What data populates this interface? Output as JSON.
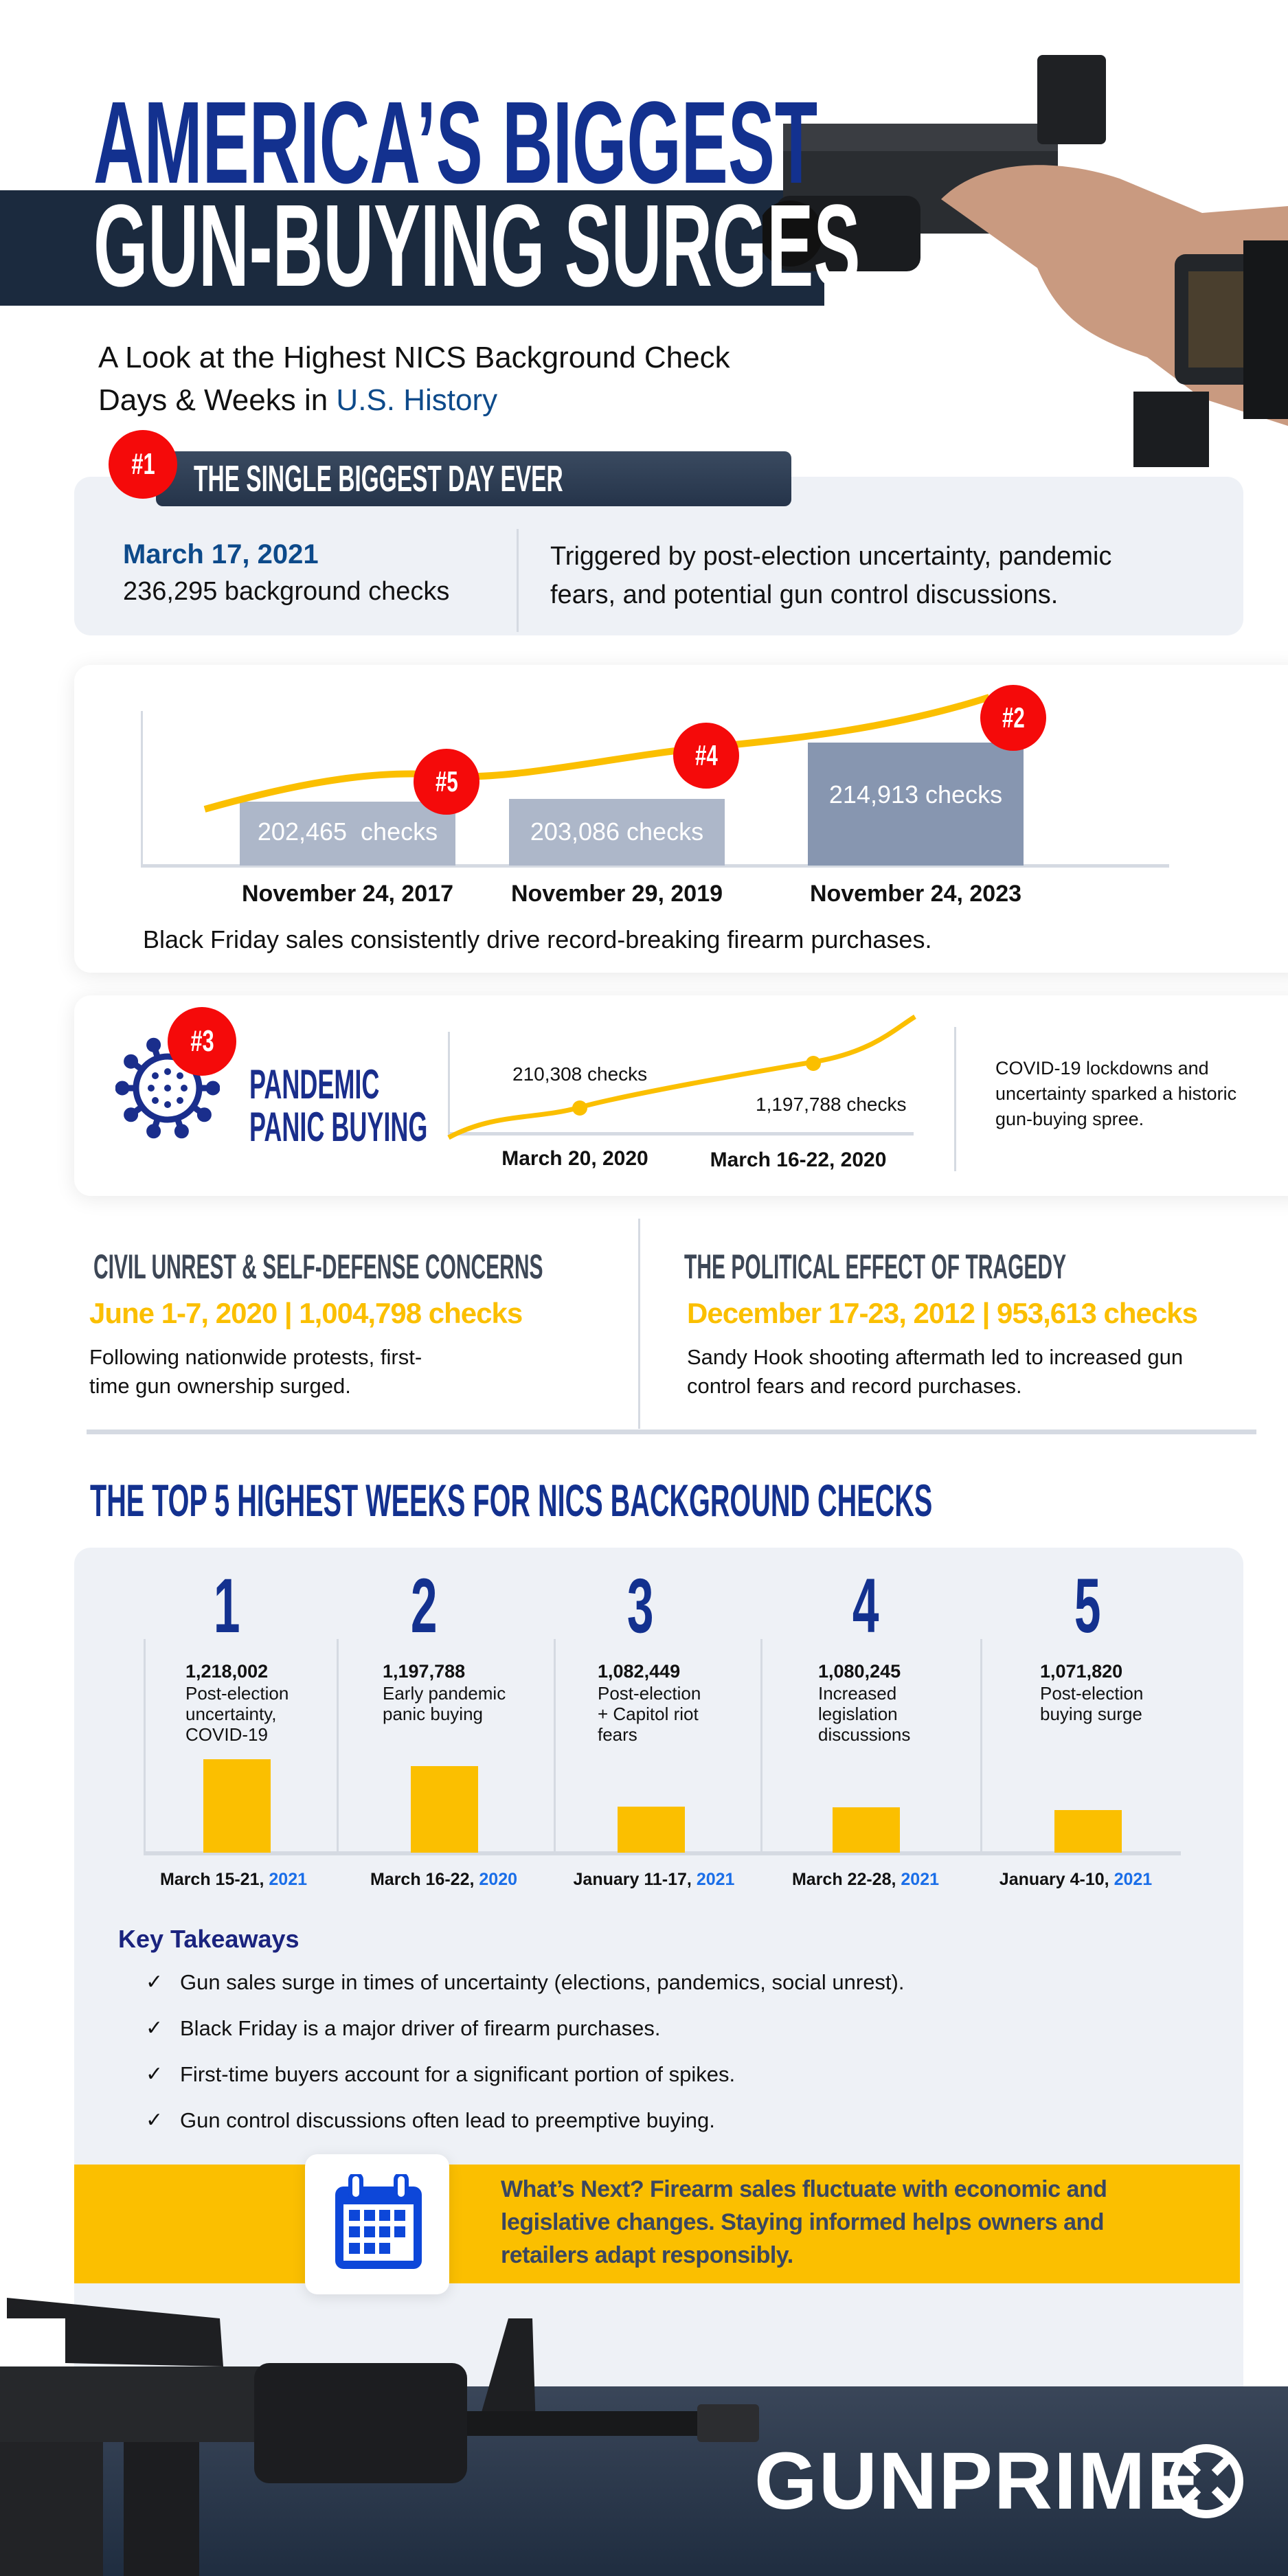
{
  "header": {
    "title_line1": "AMERICA’S BIGGEST",
    "title_line2": "GUN-BUYING SURGES",
    "subtitle_line1": "A Look at the Highest NICS Background Check",
    "subtitle_line2_prefix": "Days & Weeks in ",
    "subtitle_line2_highlight": "U.S. History"
  },
  "biggest_day": {
    "badge": "#1",
    "heading": "THE SINGLE BIGGEST DAY EVER",
    "date": "March 17, 2021",
    "checks": "236,295 background checks",
    "description_line1": "Triggered by post-election uncertainty, pandemic",
    "description_line2": "fears, and potential gun control discussions."
  },
  "black_friday": {
    "bars": [
      {
        "label": "202,465  checks",
        "date": "November 24, 2017",
        "badge": "#5",
        "value": 202465
      },
      {
        "label": "203,086 checks",
        "date": "November 29, 2019",
        "badge": "#4",
        "value": 203086
      },
      {
        "label": "214,913 checks",
        "date": "November 24, 2023",
        "badge": "#2",
        "value": 214913
      }
    ],
    "caption": "Black Friday sales consistently drive record-breaking firearm purchases."
  },
  "pandemic": {
    "badge": "#3",
    "title_line1": "PANDEMIC",
    "title_line2": "PANIC BUYING",
    "point1_label": "210,308 checks",
    "point2_label": "1,197,788 checks",
    "date1": "March 20, 2020",
    "date2": "March 16-22, 2020",
    "description_line1": "COVID-19 lockdowns and",
    "description_line2": "uncertainty sparked a historic",
    "description_line3": "gun-buying spree."
  },
  "civil_unrest": {
    "heading": "CIVIL UNREST & SELF-DEFENSE CONCERNS",
    "stat": "June 1-7, 2020 | 1,004,798 checks",
    "body_line1": "Following nationwide protests, first-",
    "body_line2": "time gun ownership surged."
  },
  "tragedy": {
    "heading": "THE POLITICAL EFFECT OF TRAGEDY",
    "stat": "December 17-23, 2012 | 953,613 checks",
    "body_line1": "Sandy Hook shooting aftermath led to increased gun",
    "body_line2": "control fears and record purchases."
  },
  "top5": {
    "heading": "THE TOP 5 HIGHEST WEEKS FOR NICS BACKGROUND CHECKS",
    "weeks": [
      {
        "rank": "1",
        "value_label": "1,218,002",
        "value": 1218002,
        "desc": [
          "Post-election",
          "uncertainty,",
          "COVID-19"
        ],
        "date": "March 15-21, ",
        "year": "2021"
      },
      {
        "rank": "2",
        "value_label": "1,197,788",
        "value": 1197788,
        "desc": [
          "Early pandemic",
          "panic buying"
        ],
        "date": "March 16-22, ",
        "year": "2020"
      },
      {
        "rank": "3",
        "value_label": "1,082,449",
        "value": 1082449,
        "desc": [
          "Post-election",
          "+ Capitol riot",
          "fears"
        ],
        "date": "January 11-17, ",
        "year": "2021"
      },
      {
        "rank": "4",
        "value_label": "1,080,245",
        "value": 1080245,
        "desc": [
          "Increased",
          "legislation",
          "discussions"
        ],
        "date": "March 22-28, ",
        "year": "2021"
      },
      {
        "rank": "5",
        "value_label": "1,071,820",
        "value": 1071820,
        "desc": [
          "Post-election",
          "buying surge"
        ],
        "date": "January 4-10, ",
        "year": "2021"
      }
    ]
  },
  "takeaways": {
    "heading": "Key Takeaways",
    "check_icon": "✓",
    "items": [
      "Gun sales surge in times of uncertainty (elections, pandemics, social unrest).",
      "Black Friday is a major driver of firearm purchases.",
      "First-time buyers account for a significant portion of spikes.",
      "Gun control discussions often lead to preemptive buying."
    ]
  },
  "whats_next": {
    "icon": "calendar-icon",
    "line1": "What’s Next? Firearm sales fluctuate with economic and",
    "line2": "legislative changes. Staying informed helps owners and",
    "line3": "retailers adapt responsibly."
  },
  "footer": {
    "logo": "GUNPRIME"
  },
  "colors": {
    "navy": "#1b2a3e",
    "blue_title": "#13318f",
    "red_badge": "#f50a0a",
    "yellow": "#fbbf00",
    "card_gray": "#eef1f6",
    "bar_gray": "#adb7c9",
    "bar_dark": "#8796b0",
    "year_blue": "#1a6ee8"
  }
}
